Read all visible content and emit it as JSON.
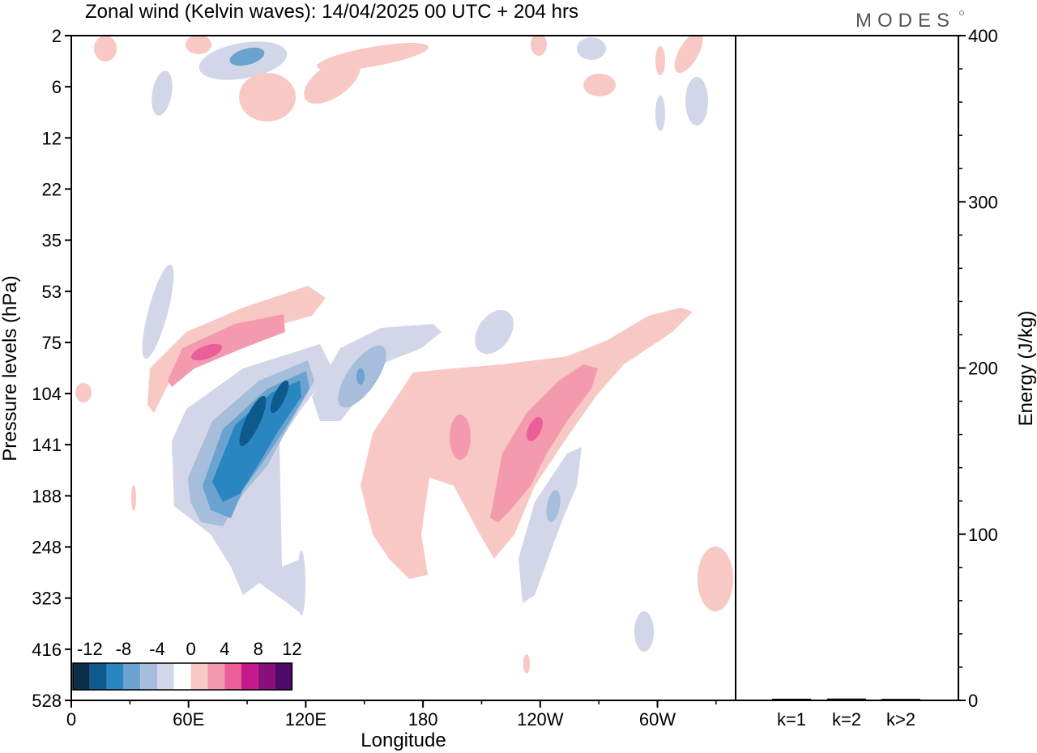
{
  "title": "Zonal wind (Kelvin waves):  14/04/2025  00 UTC  + 204 hrs",
  "logo_text": "MODES",
  "colors": {
    "neg": [
      "#0b2e4a",
      "#0f5a8c",
      "#2a86c0",
      "#6aa3cf",
      "#a6bedc",
      "#d2d6e8"
    ],
    "zero": "#ffffff",
    "pos": [
      "#f8c8c4",
      "#f49aaf",
      "#ea5f98",
      "#c51b8a",
      "#8a0f7a",
      "#4e0a6a"
    ]
  },
  "chart_data": [
    {
      "type": "heatmap",
      "title": "Zonal wind (Kelvin waves):  14/04/2025  00 UTC  + 204 hrs",
      "xlabel": "Longitude",
      "ylabel": "Pressure levels (hPa)",
      "x_ticks": [
        "0",
        "60E",
        "120E",
        "180",
        "120W",
        "60W"
      ],
      "x_range": [
        0,
        340
      ],
      "y_ticks": [
        "2",
        "6",
        "12",
        "22",
        "35",
        "53",
        "75",
        "104",
        "141",
        "188",
        "248",
        "323",
        "416",
        "528"
      ],
      "colorbar_labels": [
        "-12",
        "-8",
        "-4",
        "0",
        "4",
        "8",
        "12"
      ],
      "colorbar_levels": [
        -14,
        -12,
        -10,
        -8,
        -6,
        -4,
        -2,
        2,
        4,
        6,
        8,
        10,
        12,
        14
      ],
      "features": [
        {
          "name": "lower-strat-easterly",
          "lon": 90,
          "level": 141,
          "min": -11
        },
        {
          "name": "upper-trop-westerly-west",
          "lon": 80,
          "level": 75,
          "max": 7
        },
        {
          "name": "pacific-westerly",
          "lon": 240,
          "level": 104,
          "max": 7
        },
        {
          "name": "dateline-easterly",
          "lon": 150,
          "level": 90,
          "min": -6
        },
        {
          "name": "east-pacific-easterly",
          "lon": 248,
          "level": 188,
          "min": -7
        }
      ]
    },
    {
      "type": "bar",
      "ylabel": "Energy (J/kg)",
      "categories": [
        "k=1",
        "k=2",
        "k>2"
      ],
      "values": [
        0.5,
        0.6,
        0.4
      ],
      "ylim": [
        0,
        400
      ],
      "y_ticks": [
        "0",
        "100",
        "200",
        "300",
        "400"
      ]
    }
  ]
}
